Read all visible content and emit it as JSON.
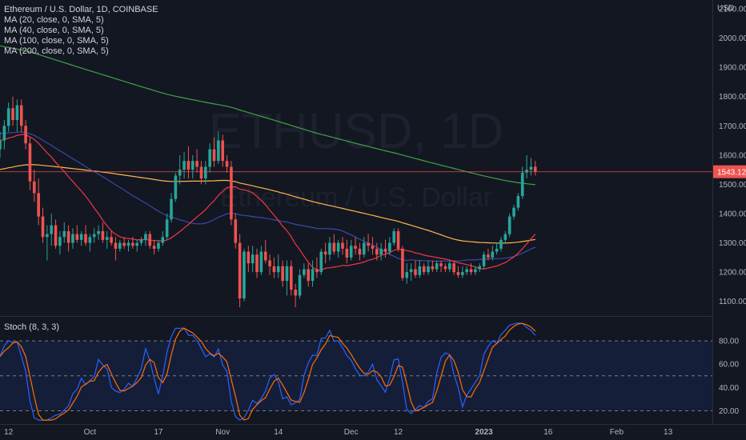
{
  "legend": {
    "title": "Ethereum / U.S. Dollar, 1D, COINBASE",
    "ma": [
      "MA (20, close, 0, SMA, 5)",
      "MA (40, close, 0, SMA, 5)",
      "MA (100, close, 0, SMA, 5)",
      "MA (200, close, 0, SMA, 5)"
    ]
  },
  "watermark": {
    "symbol": "ETHUSD, 1D",
    "name": "Ethereum / U.S. Dollar"
  },
  "currency": "USD",
  "last_price_label": "1543.12",
  "colors": {
    "up": "#26a69a",
    "down": "#ef5350",
    "ma20": "#f23645",
    "ma40": "#3949ab",
    "ma100": "#ffb74d",
    "ma200": "#43a047",
    "stoch_k": "#2962ff",
    "stoch_d": "#ff6d00"
  },
  "stoch_label": "Stoch (8, 3, 3)",
  "chart_data": [
    {
      "type": "candlestick",
      "title": "Ethereum / U.S. Dollar, 1D, COINBASE",
      "ylim": [
        1050,
        2130
      ],
      "yticks": [
        1100,
        1200,
        1300,
        1400,
        1500,
        1600,
        1700,
        1800,
        1900,
        2000,
        2100
      ],
      "ytick_labels": [
        "1100.00",
        "1200.00",
        "1300.00",
        "1400.00",
        "1500.00",
        "1600.00",
        "1700.00",
        "1800.00",
        "1900.00",
        "2000.00",
        "2100.00"
      ],
      "x_tick_labels": [
        {
          "label": "12",
          "index": 2
        },
        {
          "label": "Oct",
          "index": 21
        },
        {
          "label": "17",
          "index": 37
        },
        {
          "label": "Nov",
          "index": 52
        },
        {
          "label": "14",
          "index": 65
        },
        {
          "label": "Dec",
          "index": 82
        },
        {
          "label": "12",
          "index": 93
        },
        {
          "label": "2023",
          "index": 113
        },
        {
          "label": "16",
          "index": 128
        },
        {
          "label": "Feb",
          "index": 144
        },
        {
          "label": "13",
          "index": 156
        }
      ],
      "candles": [
        [
          1620,
          1680,
          1590,
          1650
        ],
        [
          1650,
          1720,
          1620,
          1700
        ],
        [
          1700,
          1780,
          1680,
          1760
        ],
        [
          1760,
          1800,
          1700,
          1720
        ],
        [
          1720,
          1790,
          1680,
          1770
        ],
        [
          1770,
          1790,
          1680,
          1700
        ],
        [
          1700,
          1720,
          1620,
          1640
        ],
        [
          1640,
          1660,
          1480,
          1510
        ],
        [
          1510,
          1550,
          1440,
          1470
        ],
        [
          1470,
          1520,
          1360,
          1390
        ],
        [
          1390,
          1420,
          1300,
          1320
        ],
        [
          1320,
          1360,
          1240,
          1330
        ],
        [
          1330,
          1400,
          1290,
          1360
        ],
        [
          1360,
          1380,
          1280,
          1290
        ],
        [
          1290,
          1340,
          1260,
          1320
        ],
        [
          1320,
          1370,
          1300,
          1340
        ],
        [
          1340,
          1360,
          1270,
          1300
        ],
        [
          1300,
          1350,
          1280,
          1330
        ],
        [
          1330,
          1360,
          1300,
          1310
        ],
        [
          1310,
          1340,
          1290,
          1330
        ],
        [
          1330,
          1360,
          1290,
          1300
        ],
        [
          1300,
          1330,
          1270,
          1320
        ],
        [
          1320,
          1350,
          1300,
          1330
        ],
        [
          1330,
          1360,
          1310,
          1340
        ],
        [
          1340,
          1370,
          1300,
          1310
        ],
        [
          1310,
          1340,
          1280,
          1320
        ],
        [
          1320,
          1340,
          1290,
          1300
        ],
        [
          1300,
          1320,
          1240,
          1280
        ],
        [
          1280,
          1310,
          1270,
          1300
        ],
        [
          1300,
          1320,
          1280,
          1290
        ],
        [
          1290,
          1310,
          1270,
          1300
        ],
        [
          1300,
          1320,
          1280,
          1290
        ],
        [
          1290,
          1310,
          1270,
          1300
        ],
        [
          1300,
          1320,
          1290,
          1310
        ],
        [
          1310,
          1340,
          1290,
          1330
        ],
        [
          1330,
          1340,
          1280,
          1290
        ],
        [
          1290,
          1310,
          1260,
          1280
        ],
        [
          1280,
          1310,
          1270,
          1300
        ],
        [
          1300,
          1340,
          1290,
          1320
        ],
        [
          1320,
          1400,
          1310,
          1380
        ],
        [
          1380,
          1470,
          1370,
          1450
        ],
        [
          1450,
          1540,
          1440,
          1530
        ],
        [
          1530,
          1600,
          1500,
          1550
        ],
        [
          1550,
          1610,
          1520,
          1580
        ],
        [
          1580,
          1630,
          1520,
          1550
        ],
        [
          1550,
          1600,
          1520,
          1580
        ],
        [
          1580,
          1620,
          1540,
          1560
        ],
        [
          1560,
          1580,
          1500,
          1520
        ],
        [
          1520,
          1580,
          1500,
          1560
        ],
        [
          1560,
          1640,
          1540,
          1620
        ],
        [
          1620,
          1660,
          1560,
          1580
        ],
        [
          1580,
          1680,
          1570,
          1650
        ],
        [
          1650,
          1670,
          1560,
          1580
        ],
        [
          1580,
          1600,
          1540,
          1560
        ],
        [
          1560,
          1580,
          1360,
          1380
        ],
        [
          1380,
          1400,
          1280,
          1300
        ],
        [
          1300,
          1330,
          1080,
          1110
        ],
        [
          1110,
          1280,
          1100,
          1270
        ],
        [
          1270,
          1290,
          1200,
          1230
        ],
        [
          1230,
          1290,
          1200,
          1260
        ],
        [
          1260,
          1280,
          1180,
          1200
        ],
        [
          1200,
          1290,
          1190,
          1270
        ],
        [
          1270,
          1310,
          1230,
          1240
        ],
        [
          1240,
          1260,
          1190,
          1220
        ],
        [
          1220,
          1250,
          1180,
          1200
        ],
        [
          1200,
          1260,
          1180,
          1220
        ],
        [
          1220,
          1240,
          1150,
          1170
        ],
        [
          1170,
          1240,
          1120,
          1220
        ],
        [
          1220,
          1240,
          1120,
          1140
        ],
        [
          1140,
          1160,
          1080,
          1120
        ],
        [
          1120,
          1210,
          1110,
          1190
        ],
        [
          1190,
          1230,
          1180,
          1210
        ],
        [
          1210,
          1230,
          1150,
          1170
        ],
        [
          1170,
          1240,
          1150,
          1210
        ],
        [
          1210,
          1250,
          1180,
          1200
        ],
        [
          1200,
          1280,
          1190,
          1270
        ],
        [
          1270,
          1300,
          1230,
          1260
        ],
        [
          1260,
          1320,
          1240,
          1300
        ],
        [
          1300,
          1330,
          1260,
          1270
        ],
        [
          1270,
          1310,
          1250,
          1300
        ],
        [
          1300,
          1320,
          1260,
          1280
        ],
        [
          1280,
          1310,
          1230,
          1250
        ],
        [
          1250,
          1310,
          1240,
          1290
        ],
        [
          1290,
          1320,
          1260,
          1280
        ],
        [
          1280,
          1300,
          1240,
          1260
        ],
        [
          1260,
          1320,
          1250,
          1300
        ],
        [
          1300,
          1330,
          1270,
          1290
        ],
        [
          1290,
          1320,
          1260,
          1280
        ],
        [
          1280,
          1300,
          1240,
          1260
        ],
        [
          1260,
          1300,
          1240,
          1280
        ],
        [
          1280,
          1310,
          1250,
          1270
        ],
        [
          1270,
          1320,
          1260,
          1300
        ],
        [
          1300,
          1350,
          1290,
          1340
        ],
        [
          1340,
          1350,
          1270,
          1280
        ],
        [
          1280,
          1290,
          1170,
          1180
        ],
        [
          1180,
          1230,
          1160,
          1200
        ],
        [
          1200,
          1230,
          1170,
          1210
        ],
        [
          1210,
          1240,
          1180,
          1190
        ],
        [
          1190,
          1240,
          1180,
          1220
        ],
        [
          1220,
          1230,
          1190,
          1200
        ],
        [
          1200,
          1240,
          1190,
          1220
        ],
        [
          1220,
          1240,
          1200,
          1210
        ],
        [
          1210,
          1240,
          1200,
          1230
        ],
        [
          1230,
          1240,
          1200,
          1220
        ],
        [
          1220,
          1230,
          1200,
          1210
        ],
        [
          1210,
          1240,
          1200,
          1230
        ],
        [
          1230,
          1240,
          1190,
          1200
        ],
        [
          1200,
          1220,
          1180,
          1190
        ],
        [
          1190,
          1220,
          1180,
          1200
        ],
        [
          1200,
          1220,
          1190,
          1210
        ],
        [
          1210,
          1230,
          1190,
          1200
        ],
        [
          1200,
          1220,
          1190,
          1210
        ],
        [
          1210,
          1230,
          1200,
          1220
        ],
        [
          1220,
          1270,
          1210,
          1260
        ],
        [
          1260,
          1280,
          1240,
          1250
        ],
        [
          1250,
          1290,
          1240,
          1270
        ],
        [
          1270,
          1300,
          1260,
          1280
        ],
        [
          1280,
          1320,
          1270,
          1310
        ],
        [
          1310,
          1340,
          1300,
          1330
        ],
        [
          1330,
          1400,
          1320,
          1390
        ],
        [
          1390,
          1430,
          1380,
          1420
        ],
        [
          1420,
          1470,
          1410,
          1460
        ],
        [
          1460,
          1560,
          1450,
          1540
        ],
        [
          1540,
          1600,
          1520,
          1550
        ],
        [
          1550,
          1590,
          1530,
          1560
        ],
        [
          1560,
          1580,
          1530,
          1543
        ]
      ],
      "last_price": 1543.12
    },
    {
      "type": "line",
      "title": "Stoch (8, 3, 3)",
      "ylim": [
        10,
        100
      ],
      "yticks": [
        20,
        40,
        60,
        80
      ],
      "ytick_labels": [
        "20.00",
        "40.00",
        "60.00",
        "80.00"
      ],
      "band": [
        20,
        80
      ],
      "midline": 50
    }
  ]
}
